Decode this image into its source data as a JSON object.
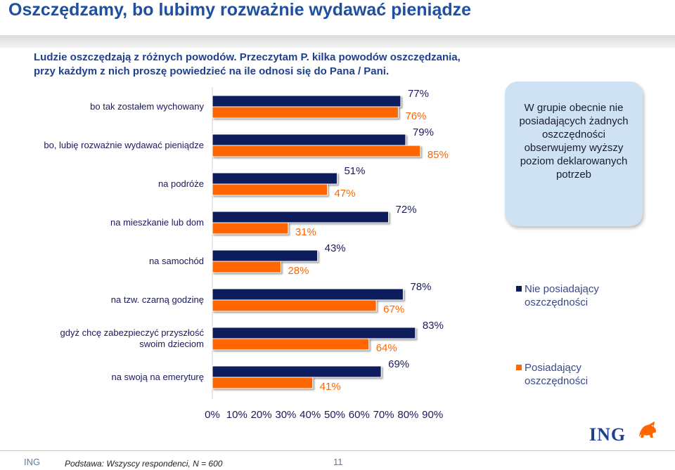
{
  "title": "Oszczędzamy, bo lubimy rozważnie wydawać pieniądze",
  "intro": {
    "line1": "Ludzie oszczędzają z różnych powodów. Przeczytam P. kilka powodów oszczędzania,",
    "line2": "przy każdym z nich proszę powiedzieć na ile odnosi się do Pana / Pani."
  },
  "callout": "W grupie obecnie nie posiadających żadnych oszczędności obserwujemy wyższy poziom deklarowanych potrzeb",
  "legend": {
    "series1": "Nie posiadający oszczędności",
    "series2": "Posiadający oszczędności"
  },
  "colors": {
    "series1": "#0a1a5c",
    "series2": "#ff6600",
    "title": "#1f4fa0"
  },
  "logo_text": "ING",
  "footer": {
    "brand": "ING",
    "base": "Podstawa: Wszyscy respondenci, N = 600",
    "page": "11"
  },
  "chart_data": {
    "type": "bar",
    "orientation": "horizontal",
    "categories": [
      "bo tak zostałem wychowany",
      "bo, lubię rozważnie wydawać pieniądze",
      "na podróże",
      "na mieszkanie lub dom",
      "na samochód",
      "na tzw. czarną godzinę",
      "gdyż chcę zabezpieczyć przyszłość swoim dzieciom",
      "na swoją na emeryturę"
    ],
    "series": [
      {
        "name": "Nie posiadający oszczędności",
        "values": [
          77,
          79,
          51,
          72,
          43,
          78,
          83,
          69
        ]
      },
      {
        "name": "Posiadający oszczędności",
        "values": [
          76,
          85,
          47,
          31,
          28,
          67,
          64,
          41
        ]
      }
    ],
    "value_labels": [
      [
        "77%",
        "79%",
        "51%",
        "72%",
        "43%",
        "78%",
        "83%",
        "69%"
      ],
      [
        "76%",
        "85%",
        "47%",
        "31%",
        "28%",
        "67%",
        "64%",
        "41%"
      ]
    ],
    "xlim": [
      0,
      90
    ],
    "x_ticks": [
      "0%",
      "10%",
      "20%",
      "30%",
      "40%",
      "50%",
      "60%",
      "70%",
      "80%",
      "90%"
    ],
    "grid": false,
    "legend_position": "right"
  }
}
